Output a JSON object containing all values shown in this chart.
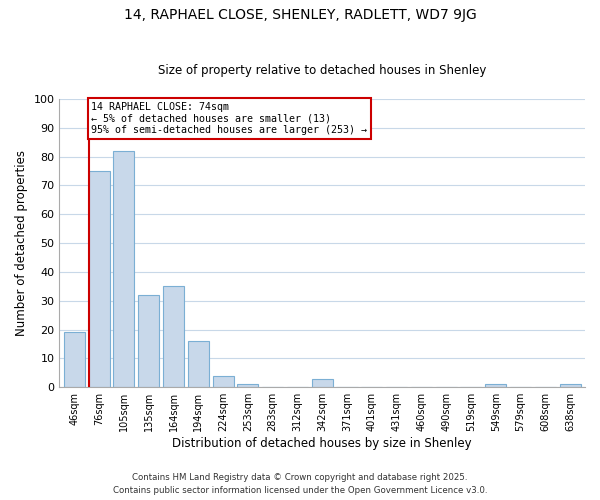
{
  "title": "14, RAPHAEL CLOSE, SHENLEY, RADLETT, WD7 9JG",
  "subtitle": "Size of property relative to detached houses in Shenley",
  "xlabel": "Distribution of detached houses by size in Shenley",
  "ylabel": "Number of detached properties",
  "categories": [
    "46sqm",
    "76sqm",
    "105sqm",
    "135sqm",
    "164sqm",
    "194sqm",
    "224sqm",
    "253sqm",
    "283sqm",
    "312sqm",
    "342sqm",
    "371sqm",
    "401sqm",
    "431sqm",
    "460sqm",
    "490sqm",
    "519sqm",
    "549sqm",
    "579sqm",
    "608sqm",
    "638sqm"
  ],
  "values": [
    19,
    75,
    82,
    32,
    35,
    16,
    4,
    1,
    0,
    0,
    3,
    0,
    0,
    0,
    0,
    0,
    0,
    1,
    0,
    0,
    1
  ],
  "bar_color": "#c8d8ea",
  "bar_edge_color": "#7bafd4",
  "ylim": [
    0,
    100
  ],
  "yticks": [
    0,
    10,
    20,
    30,
    40,
    50,
    60,
    70,
    80,
    90,
    100
  ],
  "marker_label": "14 RAPHAEL CLOSE: 74sqm",
  "annotation_line1": "← 5% of detached houses are smaller (13)",
  "annotation_line2": "95% of semi-detached houses are larger (253) →",
  "marker_line_color": "#cc0000",
  "annotation_box_color": "#ffffff",
  "annotation_box_edge": "#cc0000",
  "footer_line1": "Contains HM Land Registry data © Crown copyright and database right 2025.",
  "footer_line2": "Contains public sector information licensed under the Open Government Licence v3.0.",
  "background_color": "#ffffff",
  "grid_color": "#c8d8e8"
}
